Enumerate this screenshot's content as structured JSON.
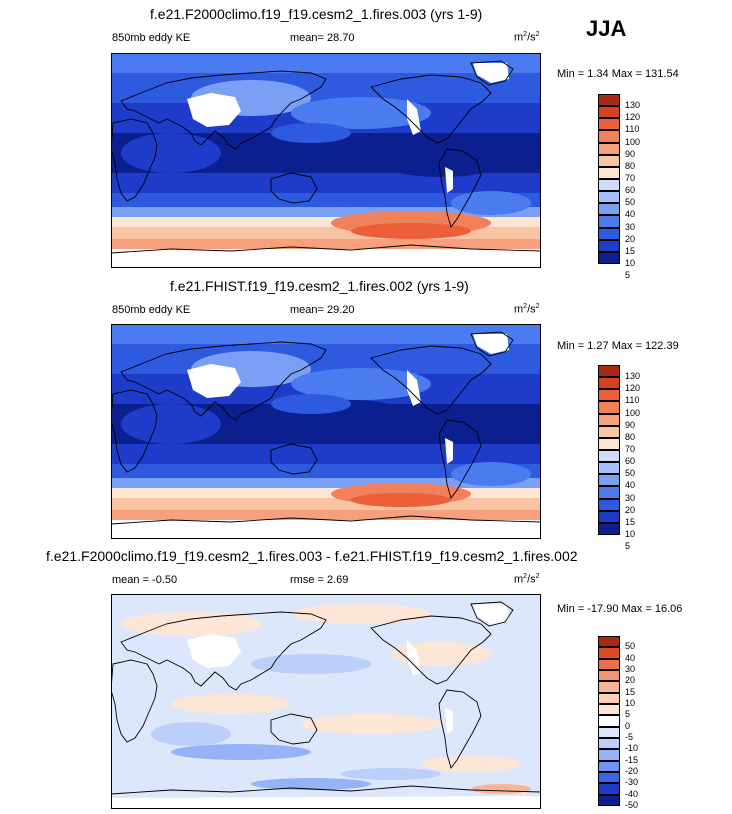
{
  "season": "JJA",
  "colors": {
    "ke_scale": [
      "#0c1f8f",
      "#1c3cc9",
      "#2e5ae0",
      "#4a7cf0",
      "#7aa0f5",
      "#a3bef8",
      "#cfdcfb",
      "#fde6d6",
      "#f9c4a3",
      "#f6a07d",
      "#f2805a",
      "#ec5f38",
      "#d8411f",
      "#a82a13"
    ],
    "diff_scale": [
      "#0c1f8f",
      "#1c3cc9",
      "#3a66e6",
      "#6e93f3",
      "#97b3f7",
      "#bccffa",
      "#dde7fc",
      "#ffffff",
      "#fde6d6",
      "#fbd0b6",
      "#f8b594",
      "#f49470",
      "#ee6f49",
      "#dc4a26",
      "#a82a13"
    ],
    "land_mask": "#ffffff",
    "coast": "#000000"
  },
  "panels": [
    {
      "title": "f.e21.F2000climo.f19_f19.cesm2_1.fires.003 (yrs 1-9)",
      "left_label": "850mb eddy KE",
      "center_label": "mean=  28.70",
      "units": "m²/s²",
      "minmax": "Min =  1.34 Max = 131.54"
    },
    {
      "title": "f.e21.FHIST.f19_f19.cesm2_1.fires.002 (yrs 1-9)",
      "left_label": "850mb eddy KE",
      "center_label": "mean=  29.20",
      "units": "m²/s²",
      "minmax": "Min =  1.27 Max = 122.39"
    },
    {
      "title": "f.e21.F2000climo.f19_f19.cesm2_1.fires.003 - f.e21.FHIST.f19_f19.cesm2_1.fires.002",
      "left_label": "mean =  -0.50",
      "center_label": "rmse =   2.69",
      "units": "m²/s²",
      "minmax": "Min = -17.90 Max =  16.06"
    }
  ],
  "chart_data": [
    {
      "type": "heatmap",
      "title": "f.e21.F2000climo.f19_f19.cesm2_1.fires.003 (yrs 1-9)",
      "variable": "850mb eddy KE",
      "mean": 28.7,
      "min": 1.34,
      "max": 131.54,
      "colorbar_levels": [
        130,
        120,
        110,
        100,
        90,
        80,
        70,
        60,
        50,
        40,
        30,
        20,
        15,
        10,
        5
      ]
    },
    {
      "type": "heatmap",
      "title": "f.e21.FHIST.f19_f19.cesm2_1.fires.002 (yrs 1-9)",
      "variable": "850mb eddy KE",
      "mean": 29.2,
      "min": 1.27,
      "max": 122.39,
      "colorbar_levels": [
        130,
        120,
        110,
        100,
        90,
        80,
        70,
        60,
        50,
        40,
        30,
        20,
        15,
        10,
        5
      ]
    },
    {
      "type": "heatmap",
      "title": "f.e21.F2000climo.f19_f19.cesm2_1.fires.003 - f.e21.FHIST.f19_f19.cesm2_1.fires.002",
      "mean": -0.5,
      "rmse": 2.69,
      "min": -17.9,
      "max": 16.06,
      "colorbar_levels": [
        50,
        40,
        30,
        20,
        15,
        10,
        5,
        0,
        -5,
        -10,
        -15,
        -20,
        -30,
        -40,
        -50
      ]
    }
  ]
}
